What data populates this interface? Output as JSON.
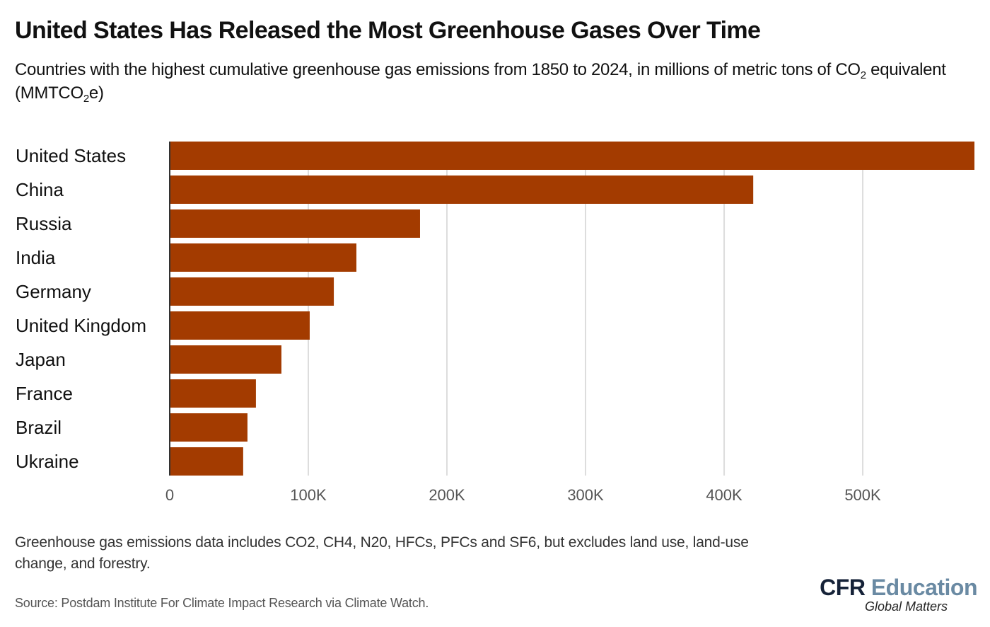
{
  "header": {
    "title": "United States Has Released the Most Greenhouse Gases Over Time",
    "subtitle_part1": "Countries with the highest cumulative greenhouse gas emissions from 1850 to 2024, in millions of metric tons of CO",
    "subtitle_sub1": "2",
    "subtitle_part2": " equivalent (MMTCO",
    "subtitle_sub2": "2",
    "subtitle_part3": "e)"
  },
  "footer": {
    "note": "Greenhouse gas emissions data includes CO2, CH4, N20, HFCs, PFCs and SF6, but excludes land use, land-use change, and forestry.",
    "source": "Source: Postdam Institute For Climate Impact Research via Climate Watch.",
    "logo_cfr": "CFR",
    "logo_education": "Education",
    "logo_tagline": "Global Matters"
  },
  "colors": {
    "bar": "#a33b00",
    "gridline": "#dddddd",
    "axis": "#333333",
    "logo_dark": "#152238",
    "logo_light": "#6a8aa3"
  },
  "chart_data": {
    "type": "bar",
    "orientation": "horizontal",
    "title": "United States Has Released the Most Greenhouse Gases Over Time",
    "xlabel": "",
    "ylabel": "",
    "unit": "MMTCO2e",
    "categories": [
      "United States",
      "China",
      "Russia",
      "India",
      "Germany",
      "United Kingdom",
      "Japan",
      "France",
      "Brazil",
      "Ukraine"
    ],
    "values": [
      580600,
      421000,
      180600,
      134700,
      118400,
      101000,
      80600,
      62200,
      56100,
      53000
    ],
    "xlim": [
      0,
      580600
    ],
    "ticks": [
      0,
      100000,
      200000,
      300000,
      400000,
      500000
    ],
    "tick_labels": [
      "0",
      "100K",
      "200K",
      "300K",
      "400K",
      "500K"
    ],
    "grid": true,
    "legend": "none"
  }
}
